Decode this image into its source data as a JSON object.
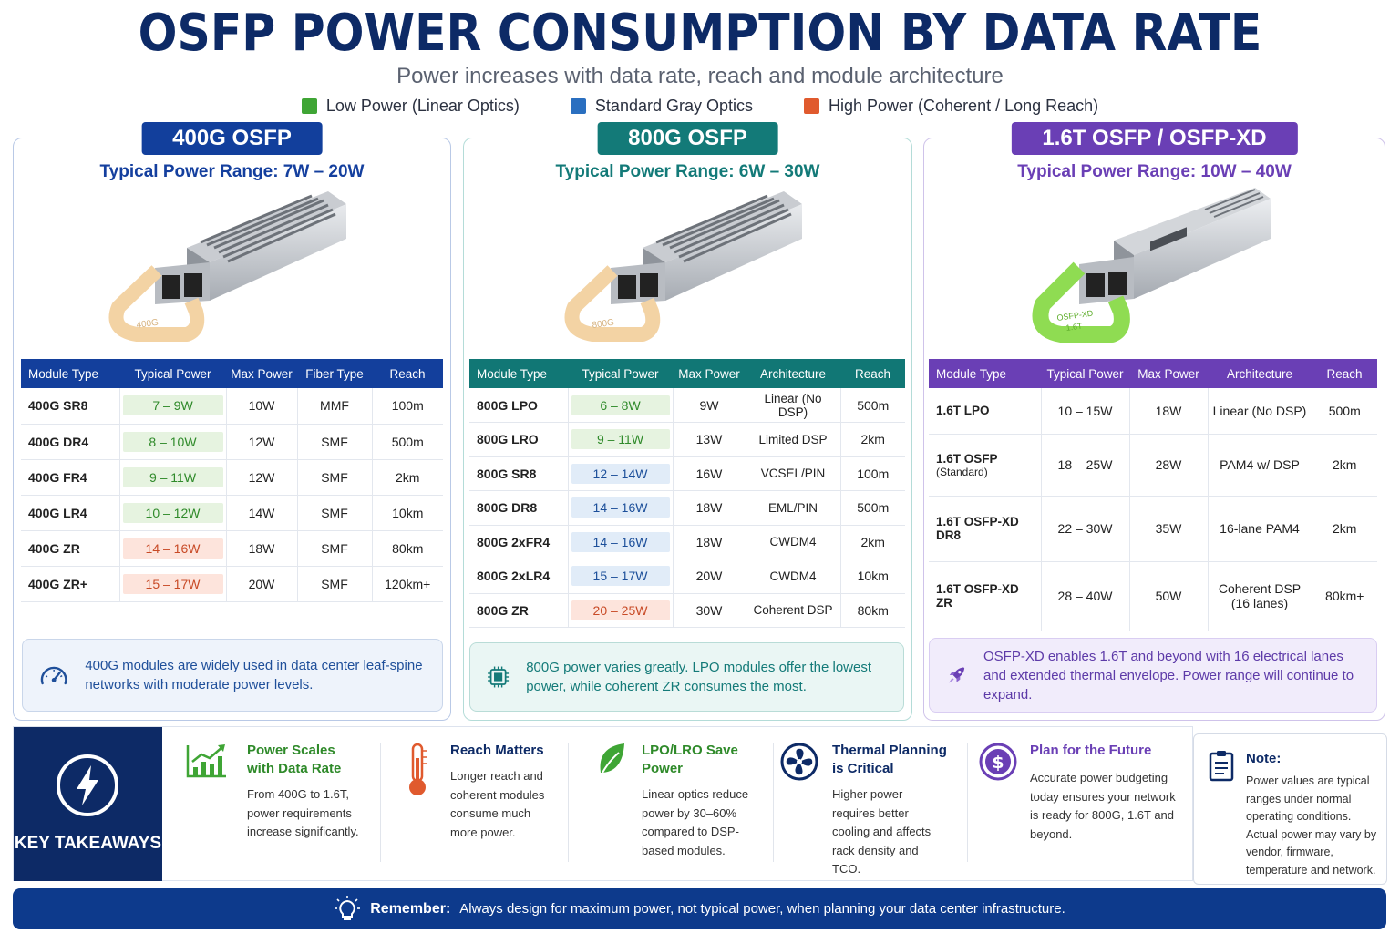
{
  "header": {
    "title": "OSFP POWER CONSUMPTION BY DATA RATE",
    "subtitle": "Power increases with data rate, reach and module architecture"
  },
  "legend": [
    {
      "label": "Low Power (Linear Optics)",
      "color": "#3fa535"
    },
    {
      "label": "Standard Gray Optics",
      "color": "#2a6fc0"
    },
    {
      "label": "High Power (Coherent / Long Reach)",
      "color": "#e05a2e"
    }
  ],
  "panels": {
    "p400": {
      "badge": "400G OSFP",
      "range": "Typical Power Range: 7W – 20W",
      "module_label": "400G",
      "columns": [
        "Module Type",
        "Typical Power",
        "Max Power",
        "Fiber Type",
        "Reach"
      ],
      "rows": [
        {
          "type": "400G SR8",
          "typical": "7 – 9W",
          "max": "10W",
          "fiber": "MMF",
          "reach": "100m",
          "cls": "std",
          "pill": "low",
          "reachcls": "low"
        },
        {
          "type": "400G DR4",
          "typical": "8 – 10W",
          "max": "12W",
          "fiber": "SMF",
          "reach": "500m",
          "cls": "std",
          "pill": "low",
          "reachcls": ""
        },
        {
          "type": "400G FR4",
          "typical": "9 – 11W",
          "max": "12W",
          "fiber": "SMF",
          "reach": "2km",
          "cls": "std",
          "pill": "low",
          "reachcls": ""
        },
        {
          "type": "400G LR4",
          "typical": "10 – 12W",
          "max": "14W",
          "fiber": "SMF",
          "reach": "10km",
          "cls": "std",
          "pill": "low",
          "reachcls": ""
        },
        {
          "type": "400G ZR",
          "typical": "14 – 16W",
          "max": "18W",
          "fiber": "SMF",
          "reach": "80km",
          "cls": "high",
          "pill": "high",
          "reachcls": ""
        },
        {
          "type": "400G ZR+",
          "typical": "15 – 17W",
          "max": "20W",
          "fiber": "SMF",
          "reach": "120km+",
          "cls": "high",
          "pill": "high",
          "reachcls": ""
        }
      ],
      "info": "400G modules are widely used in data center leaf-spine networks with moderate power levels."
    },
    "p800": {
      "badge": "800G OSFP",
      "range": "Typical Power Range: 6W – 30W",
      "module_label": "800G",
      "columns": [
        "Module Type",
        "Typical Power",
        "Max Power",
        "Architecture",
        "Reach"
      ],
      "rows": [
        {
          "type": "800G LPO",
          "typical": "6 – 8W",
          "max": "9W",
          "fiber": "Linear (No DSP)",
          "reach": "500m",
          "cls": "low",
          "pill": "low",
          "reachcls": "low"
        },
        {
          "type": "800G LRO",
          "typical": "9 – 11W",
          "max": "13W",
          "fiber": "Limited DSP",
          "reach": "2km",
          "cls": "low",
          "pill": "low",
          "reachcls": ""
        },
        {
          "type": "800G SR8",
          "typical": "12 – 14W",
          "max": "16W",
          "fiber": "VCSEL/PIN",
          "reach": "100m",
          "cls": "std",
          "pill": "std",
          "reachcls": ""
        },
        {
          "type": "800G DR8",
          "typical": "14 – 16W",
          "max": "18W",
          "fiber": "EML/PIN",
          "reach": "500m",
          "cls": "std",
          "pill": "std",
          "reachcls": ""
        },
        {
          "type": "800G 2xFR4",
          "typical": "14 – 16W",
          "max": "18W",
          "fiber": "CWDM4",
          "reach": "2km",
          "cls": "std",
          "pill": "std",
          "reachcls": ""
        },
        {
          "type": "800G 2xLR4",
          "typical": "15 – 17W",
          "max": "20W",
          "fiber": "CWDM4",
          "reach": "10km",
          "cls": "std",
          "pill": "std",
          "reachcls": ""
        },
        {
          "type": "800G ZR",
          "typical": "20 – 25W",
          "max": "30W",
          "fiber": "Coherent DSP",
          "reach": "80km",
          "cls": "high",
          "pill": "high",
          "reachcls": ""
        }
      ],
      "info": "800G power varies greatly. LPO modules offer the lowest power, while coherent ZR consumes the most."
    },
    "p16": {
      "badge": "1.6T OSFP / OSFP-XD",
      "range": "Typical Power Range: 10W – 40W",
      "module_label_1": "OSFP-XD",
      "module_label_2": "1.6T",
      "columns": [
        "Module Type",
        "Typical Power",
        "Max Power",
        "Architecture",
        "Reach"
      ],
      "rows": [
        {
          "type": "1.6T LPO",
          "sub": "",
          "typical": "10 – 15W",
          "max": "18W",
          "arch": "Linear (No DSP)",
          "arch2": "",
          "reach": "500m",
          "cls": "low"
        },
        {
          "type": "1.6T OSFP",
          "sub": "(Standard)",
          "typical": "18 – 25W",
          "max": "28W",
          "arch": "PAM4 w/ DSP",
          "arch2": "",
          "reach": "2km",
          "cls": "std"
        },
        {
          "type": "1.6T OSFP-XD DR8",
          "sub": "",
          "typical": "22 – 30W",
          "max": "35W",
          "arch": "16-lane PAM4",
          "arch2": "",
          "reach": "2km",
          "cls": "std"
        },
        {
          "type": "1.6T OSFP-XD ZR",
          "sub": "",
          "typical": "28 – 40W",
          "max": "50W",
          "arch": "Coherent DSP",
          "arch2": "(16 lanes)",
          "reach": "80km+",
          "cls": "high"
        }
      ],
      "info": "OSFP-XD enables 1.6T and beyond with 16 electrical lanes and extended thermal envelope. Power range will continue to expand."
    }
  },
  "takeaways": {
    "label": "KEY TAKEAWAYS",
    "items": [
      {
        "title": "Power Scales with Data Rate",
        "desc": "From 400G to 1.6T, power requirements increase significantly.",
        "icon": "chart-up-icon"
      },
      {
        "title": "Reach Matters",
        "desc": "Longer reach and coherent modules consume much more power.",
        "icon": "thermometer-icon"
      },
      {
        "title": "LPO/LRO Save Power",
        "desc": "Linear optics reduce power by 30–60% compared to DSP-based modules.",
        "icon": "leaf-icon"
      },
      {
        "title": "Thermal Planning is Critical",
        "desc": "Higher power requires better cooling and affects rack density and TCO.",
        "icon": "fan-icon"
      },
      {
        "title": "Plan for the Future",
        "desc": "Accurate power budgeting today ensures your network is ready for 800G, 1.6T and beyond.",
        "icon": "dollar-icon"
      }
    ]
  },
  "note": {
    "title": "Note:",
    "desc": "Power values are typical ranges under normal operating conditions. Actual power may vary by vendor, firmware, temperature and network."
  },
  "remember": {
    "label": "Remember:",
    "text": "Always design for maximum power, not typical power, when planning your data center infrastructure."
  }
}
